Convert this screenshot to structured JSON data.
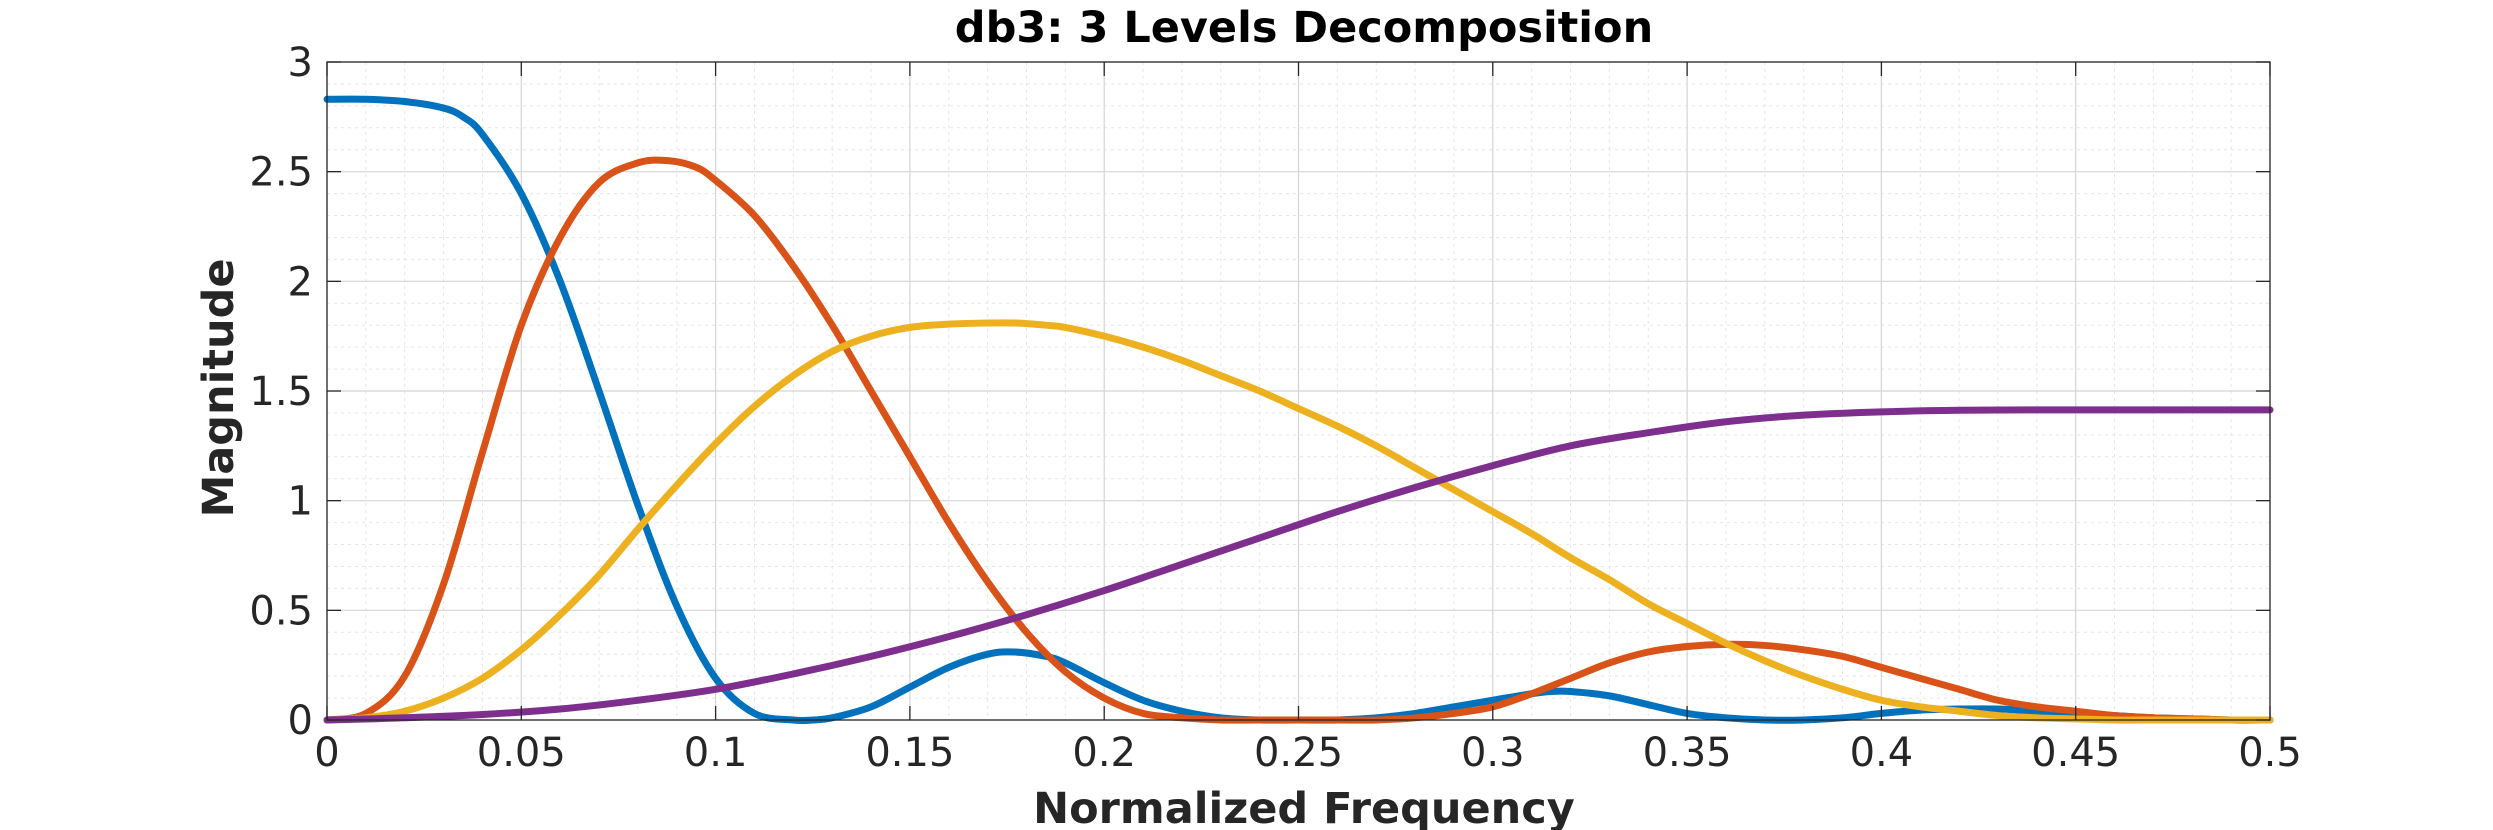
{
  "chart_data": {
    "type": "line",
    "title": "db3: 3 Levels Decomposition",
    "xlabel": "Normalized Frequency",
    "ylabel": "Magnitude",
    "xlim": [
      0,
      0.5
    ],
    "ylim": [
      0,
      3
    ],
    "xticks": [
      0,
      0.05,
      0.1,
      0.15,
      0.2,
      0.25,
      0.3,
      0.35,
      0.4,
      0.45,
      0.5
    ],
    "xtick_labels": [
      "0",
      "0.05",
      "0.1",
      "0.15",
      "0.2",
      "0.25",
      "0.3",
      "0.35",
      "0.4",
      "0.45",
      "0.5"
    ],
    "yticks": [
      0,
      0.5,
      1,
      1.5,
      2,
      2.5,
      3
    ],
    "ytick_labels": [
      "0",
      "0.5",
      "1",
      "1.5",
      "2",
      "2.5",
      "3"
    ],
    "grid": true,
    "minor_grid": true,
    "series": [
      {
        "color": "#0072BD",
        "x": [
          0,
          0.01,
          0.02,
          0.03,
          0.035,
          0.04,
          0.05,
          0.06,
          0.07,
          0.08,
          0.09,
          0.1,
          0.11,
          0.12,
          0.125,
          0.13,
          0.14,
          0.15,
          0.16,
          0.17,
          0.177,
          0.185,
          0.19,
          0.2,
          0.21,
          0.22,
          0.23,
          0.24,
          0.25,
          0.26,
          0.27,
          0.28,
          0.29,
          0.3,
          0.31,
          0.315,
          0.32,
          0.33,
          0.34,
          0.35,
          0.36,
          0.37,
          0.38,
          0.39,
          0.4,
          0.41,
          0.42,
          0.43,
          0.44,
          0.45,
          0.46,
          0.47,
          0.48,
          0.49,
          0.5
        ],
        "y": [
          2.83,
          2.83,
          2.82,
          2.79,
          2.75,
          2.67,
          2.4,
          2.0,
          1.5,
          0.98,
          0.52,
          0.19,
          0.03,
          0.0,
          0.0,
          0.01,
          0.06,
          0.15,
          0.24,
          0.3,
          0.31,
          0.29,
          0.26,
          0.17,
          0.09,
          0.04,
          0.01,
          0.0,
          0.0,
          0.0,
          0.01,
          0.03,
          0.06,
          0.09,
          0.12,
          0.13,
          0.13,
          0.11,
          0.07,
          0.03,
          0.01,
          0.0,
          0.0,
          0.01,
          0.03,
          0.045,
          0.05,
          0.05,
          0.04,
          0.03,
          0.02,
          0.01,
          0.005,
          0.0,
          0.0
        ]
      },
      {
        "color": "#D95319",
        "x": [
          0,
          0.01,
          0.02,
          0.03,
          0.04,
          0.05,
          0.06,
          0.07,
          0.08,
          0.088,
          0.095,
          0.1,
          0.11,
          0.12,
          0.13,
          0.14,
          0.15,
          0.16,
          0.17,
          0.18,
          0.19,
          0.2,
          0.21,
          0.22,
          0.23,
          0.24,
          0.25,
          0.26,
          0.27,
          0.28,
          0.29,
          0.3,
          0.31,
          0.32,
          0.33,
          0.34,
          0.35,
          0.36,
          0.37,
          0.38,
          0.39,
          0.4,
          0.41,
          0.42,
          0.43,
          0.44,
          0.45,
          0.46,
          0.47,
          0.48,
          0.49,
          0.5
        ],
        "y": [
          0.0,
          0.03,
          0.2,
          0.62,
          1.22,
          1.8,
          2.2,
          2.45,
          2.54,
          2.55,
          2.52,
          2.46,
          2.3,
          2.07,
          1.8,
          1.5,
          1.2,
          0.9,
          0.63,
          0.4,
          0.22,
          0.1,
          0.03,
          0.01,
          0.0,
          0.0,
          0.0,
          0.0,
          0.0,
          0.01,
          0.03,
          0.06,
          0.12,
          0.19,
          0.26,
          0.31,
          0.335,
          0.345,
          0.34,
          0.32,
          0.29,
          0.24,
          0.19,
          0.14,
          0.09,
          0.06,
          0.04,
          0.02,
          0.01,
          0.005,
          0.0,
          0.0
        ]
      },
      {
        "color": "#EDB120",
        "x": [
          0,
          0.01,
          0.02,
          0.03,
          0.04,
          0.05,
          0.06,
          0.07,
          0.08,
          0.09,
          0.1,
          0.11,
          0.12,
          0.13,
          0.14,
          0.15,
          0.16,
          0.17,
          0.177,
          0.185,
          0.19,
          0.2,
          0.21,
          0.22,
          0.23,
          0.24,
          0.25,
          0.26,
          0.27,
          0.28,
          0.29,
          0.3,
          0.31,
          0.32,
          0.33,
          0.34,
          0.35,
          0.36,
          0.37,
          0.38,
          0.39,
          0.4,
          0.41,
          0.42,
          0.43,
          0.44,
          0.45,
          0.46,
          0.47,
          0.48,
          0.49,
          0.5
        ],
        "y": [
          0.0,
          0.01,
          0.04,
          0.1,
          0.19,
          0.32,
          0.48,
          0.66,
          0.87,
          1.07,
          1.26,
          1.43,
          1.57,
          1.68,
          1.75,
          1.79,
          1.805,
          1.81,
          1.81,
          1.8,
          1.79,
          1.75,
          1.7,
          1.64,
          1.57,
          1.5,
          1.42,
          1.34,
          1.25,
          1.15,
          1.05,
          0.95,
          0.85,
          0.74,
          0.64,
          0.53,
          0.44,
          0.35,
          0.27,
          0.2,
          0.14,
          0.09,
          0.06,
          0.04,
          0.02,
          0.01,
          0.005,
          0.0,
          0.0,
          0.0,
          0.0,
          0.0
        ]
      },
      {
        "color": "#7E2F8E",
        "x": [
          0,
          0.02,
          0.04,
          0.06,
          0.08,
          0.1,
          0.12,
          0.14,
          0.16,
          0.18,
          0.2,
          0.22,
          0.24,
          0.26,
          0.28,
          0.3,
          0.32,
          0.34,
          0.36,
          0.38,
          0.4,
          0.42,
          0.44,
          0.46,
          0.48,
          0.5
        ],
        "y": [
          0.0,
          0.01,
          0.025,
          0.05,
          0.09,
          0.14,
          0.21,
          0.29,
          0.38,
          0.48,
          0.59,
          0.71,
          0.83,
          0.95,
          1.06,
          1.16,
          1.25,
          1.31,
          1.36,
          1.39,
          1.405,
          1.412,
          1.414,
          1.414,
          1.414,
          1.414
        ]
      }
    ]
  }
}
